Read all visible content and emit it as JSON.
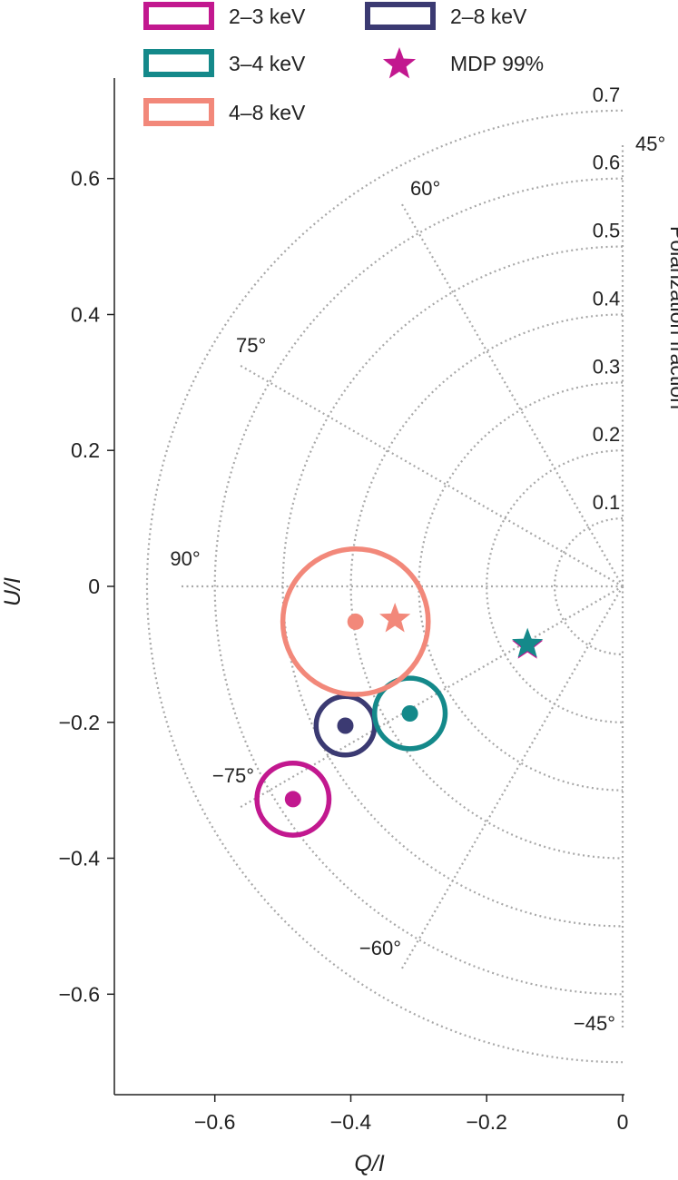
{
  "chart_data": {
    "type": "scatter",
    "coordinate_system": "Stokes Q/I vs U/I with polar polarization-fraction grid",
    "xlabel": "Q/I",
    "ylabel": "U/I",
    "xlim": [
      -0.75,
      0.0
    ],
    "ylim": [
      -0.75,
      0.72
    ],
    "x_ticks": [
      -0.6,
      -0.4,
      -0.2,
      0
    ],
    "x_tick_labels": [
      "−0.6",
      "−0.4",
      "−0.2",
      "0"
    ],
    "y_ticks": [
      0.6,
      0.4,
      0.2,
      0,
      -0.2,
      -0.4,
      -0.6
    ],
    "y_tick_labels": [
      "0.6",
      "0.4",
      "0.2",
      "0",
      "−0.2",
      "−0.4",
      "−0.6"
    ],
    "polar_grid": {
      "title": "Polarization fraction",
      "radii": [
        0.1,
        0.2,
        0.3,
        0.4,
        0.5,
        0.6,
        0.7
      ],
      "radius_labels": [
        "0.1",
        "0.2",
        "0.3",
        "0.4",
        "0.5",
        "0.6",
        "0.7"
      ],
      "angle_lines_deg": [
        45,
        60,
        75,
        90,
        -75,
        -60,
        -45
      ],
      "angle_labels": [
        "45°",
        "60°",
        "75°",
        "90°",
        "−75°",
        "−60°",
        "−45°"
      ]
    },
    "legend": {
      "placement": "top",
      "entries": [
        {
          "label": "2–3 keV",
          "color": "#c2188f",
          "marker": "ring"
        },
        {
          "label": "2–8 keV",
          "color": "#3b3a72",
          "marker": "ring"
        },
        {
          "label": "3–4 keV",
          "color": "#14898a",
          "marker": "ring"
        },
        {
          "label": "MDP 99%",
          "color": "#c2188f",
          "marker": "star"
        },
        {
          "label": "4–8 keV",
          "color": "#f2887a",
          "marker": "ring"
        }
      ]
    },
    "series": [
      {
        "name": "2–3 keV",
        "color": "#c2188f",
        "q": -0.485,
        "u": -0.313,
        "error_radius": 0.053,
        "mdp_star": {
          "q": -0.14,
          "u": -0.087
        }
      },
      {
        "name": "2–8 keV",
        "color": "#3b3a72",
        "q": -0.408,
        "u": -0.205,
        "error_radius": 0.043,
        "mdp_star": null
      },
      {
        "name": "3–4 keV",
        "color": "#14898a",
        "q": -0.313,
        "u": -0.187,
        "error_radius": 0.052,
        "mdp_star": {
          "q": -0.14,
          "u": -0.085
        }
      },
      {
        "name": "4–8 keV",
        "color": "#f2887a",
        "q": -0.393,
        "u": -0.052,
        "error_radius": 0.107,
        "mdp_star": {
          "q": -0.335,
          "u": -0.048
        }
      }
    ]
  }
}
